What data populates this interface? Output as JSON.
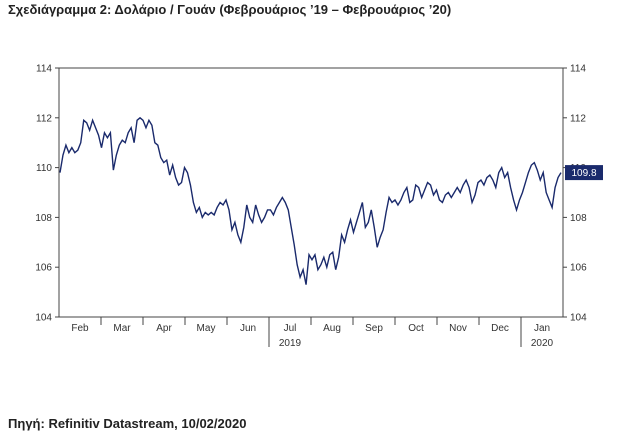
{
  "title": "Σχεδιάγραμμα 2: Δολάριο / Γουάν (Φεβρουάριος ’19 – Φεβρουάριος ’20)",
  "source": "Πηγή: Refinitiv Datastream, 10/02/2020",
  "chart_data": {
    "type": "line",
    "title": "Σχεδιάγραμμα 2: Δολάριο / Γουάν (Φεβρουάριος ’19 – Φεβρουάριος ’20)",
    "xlabel": "",
    "ylabel": "",
    "ylim": [
      104,
      114
    ],
    "yticks": [
      "104",
      "106",
      "108",
      "110",
      "112",
      "114"
    ],
    "x_tick_labels": [
      "Feb",
      "Mar",
      "Apr",
      "May",
      "Jun",
      "Jul",
      "Aug",
      "Sep",
      "Oct",
      "Nov",
      "Dec",
      "Jan"
    ],
    "x_year_labels": [
      {
        "label": "2019",
        "month_index": 5
      },
      {
        "label": "2020",
        "month_index": 11
      }
    ],
    "grid": false,
    "line_color": "#1a2a6c",
    "last_value_label": "109.8",
    "series": [
      {
        "values": [
          109.8,
          110.5,
          110.9,
          110.6,
          110.8,
          110.6,
          110.7,
          111.0,
          111.9,
          111.8,
          111.5,
          111.9,
          111.6,
          111.3,
          110.8,
          111.4,
          111.2,
          111.4,
          109.9,
          110.5,
          110.9,
          111.1,
          111.0,
          111.4,
          111.6,
          111.0,
          111.9,
          112.0,
          111.9,
          111.6,
          111.9,
          111.7,
          111.0,
          110.9,
          110.4,
          110.2,
          110.3,
          109.7,
          110.1,
          109.6,
          109.3,
          109.4,
          110.0,
          109.8,
          109.3,
          108.6,
          108.2,
          108.4,
          108.0,
          108.2,
          108.1,
          108.2,
          108.1,
          108.4,
          108.6,
          108.5,
          108.7,
          108.3,
          107.5,
          107.8,
          107.3,
          107.0,
          107.6,
          108.5,
          108.0,
          107.8,
          108.5,
          108.1,
          107.8,
          108.0,
          108.3,
          108.3,
          108.1,
          108.4,
          108.6,
          108.8,
          108.6,
          108.3,
          107.6,
          106.9,
          106.1,
          105.6,
          105.9,
          105.3,
          106.5,
          106.3,
          106.5,
          105.9,
          106.1,
          106.4,
          106.0,
          106.5,
          106.6,
          105.9,
          106.4,
          107.3,
          107.0,
          107.5,
          107.9,
          107.4,
          107.8,
          108.2,
          108.6,
          107.6,
          107.8,
          108.3,
          107.6,
          106.8,
          107.2,
          107.5,
          108.2,
          108.8,
          108.6,
          108.7,
          108.5,
          108.7,
          109.0,
          109.2,
          108.6,
          108.7,
          109.3,
          109.2,
          108.8,
          109.1,
          109.4,
          109.3,
          108.9,
          109.1,
          108.7,
          108.6,
          108.9,
          109.0,
          108.8,
          109.0,
          109.2,
          109.0,
          109.3,
          109.5,
          109.2,
          108.6,
          108.9,
          109.4,
          109.5,
          109.3,
          109.6,
          109.7,
          109.5,
          109.2,
          109.8,
          110.0,
          109.6,
          109.8,
          109.2,
          108.7,
          108.3,
          108.7,
          109.0,
          109.4,
          109.8,
          110.1,
          110.2,
          109.9,
          109.5,
          109.8,
          109.0,
          108.7,
          108.4,
          109.2,
          109.6,
          109.8
        ]
      }
    ]
  }
}
